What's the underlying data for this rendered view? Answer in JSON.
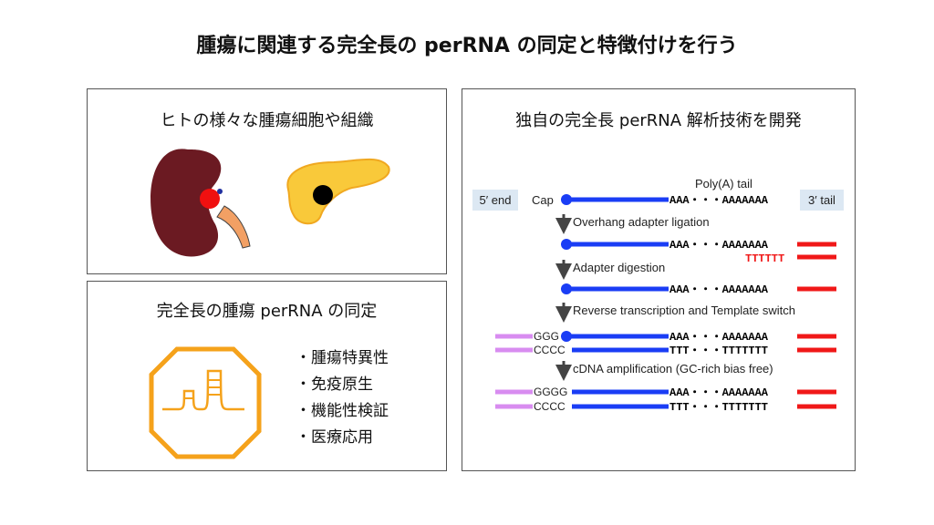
{
  "title": "腫瘍に関連する完全長の perRNA の同定と特徴付けを行う",
  "panel_tissues": {
    "title": "ヒトの様々な腫瘍細胞や組織"
  },
  "panel_identification": {
    "title": "完全長の腫瘍 perRNA の同定",
    "bullets": [
      "・腫瘍特異性",
      "・免疫原生",
      "・機能性検証",
      "・医療応用"
    ],
    "icon_color": "#F5A21B"
  },
  "panel_method": {
    "title": "独自の完全長 perRNA 解析技術を開発",
    "labels": {
      "five_end": "5′ end",
      "three_tail": "3′ tail",
      "cap": "Cap",
      "polya": "Poly(A) tail"
    },
    "steps": [
      "Overhang adapter ligation",
      "Adapter digestion",
      "Reverse transcription and Template switch",
      "cDNA amplification (GC-rich bias free)"
    ],
    "seq": {
      "a": "AAA・・・AAAAAAA",
      "t": "TTT・・・TTTTTTT",
      "adapter_t": "TTTTTT",
      "ggg": "GGG",
      "gggg": "GGGG",
      "cccc": "CCCC"
    },
    "colors": {
      "rna": "#1A3DF5",
      "adapter": "#F01818",
      "primer": "#D88CF0",
      "label_bg": "#DCE8F3"
    }
  }
}
